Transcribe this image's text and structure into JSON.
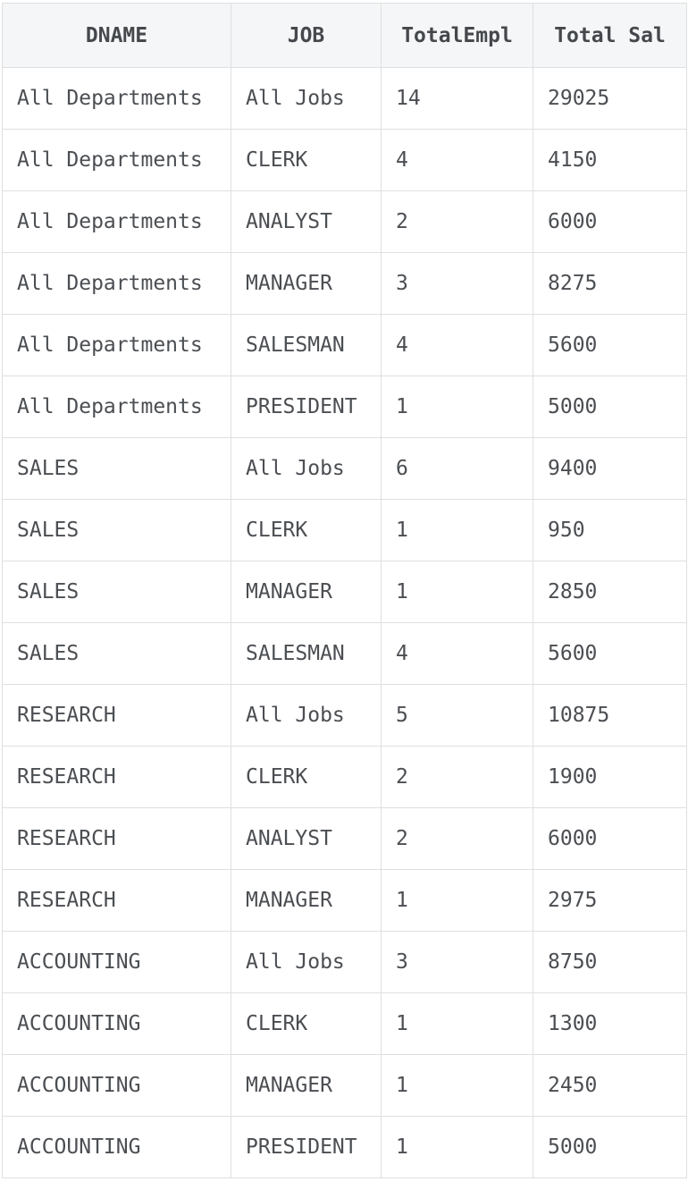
{
  "colors": {
    "border": "#dddfe1",
    "header_background": "#f5f6f7",
    "row_background": "#ffffff",
    "text": "#4b4e52",
    "header_text": "#45484c"
  },
  "chart_data": {
    "type": "table",
    "title": "",
    "columns": [
      "DNAME",
      "JOB",
      "TotalEmpl",
      "Total Sal"
    ],
    "rows": [
      [
        "All Departments",
        "All Jobs",
        "14",
        "29025"
      ],
      [
        "All Departments",
        "CLERK",
        "4",
        "4150"
      ],
      [
        "All Departments",
        "ANALYST",
        "2",
        "6000"
      ],
      [
        "All Departments",
        "MANAGER",
        "3",
        "8275"
      ],
      [
        "All Departments",
        "SALESMAN",
        "4",
        "5600"
      ],
      [
        "All Departments",
        "PRESIDENT",
        "1",
        "5000"
      ],
      [
        "SALES",
        "All Jobs",
        "6",
        "9400"
      ],
      [
        "SALES",
        "CLERK",
        "1",
        "950"
      ],
      [
        "SALES",
        "MANAGER",
        "1",
        "2850"
      ],
      [
        "SALES",
        "SALESMAN",
        "4",
        "5600"
      ],
      [
        "RESEARCH",
        "All Jobs",
        "5",
        "10875"
      ],
      [
        "RESEARCH",
        "CLERK",
        "2",
        "1900"
      ],
      [
        "RESEARCH",
        "ANALYST",
        "2",
        "6000"
      ],
      [
        "RESEARCH",
        "MANAGER",
        "1",
        "2975"
      ],
      [
        "ACCOUNTING",
        "All Jobs",
        "3",
        "8750"
      ],
      [
        "ACCOUNTING",
        "CLERK",
        "1",
        "1300"
      ],
      [
        "ACCOUNTING",
        "MANAGER",
        "1",
        "2450"
      ],
      [
        "ACCOUNTING",
        "PRESIDENT",
        "1",
        "5000"
      ]
    ]
  }
}
